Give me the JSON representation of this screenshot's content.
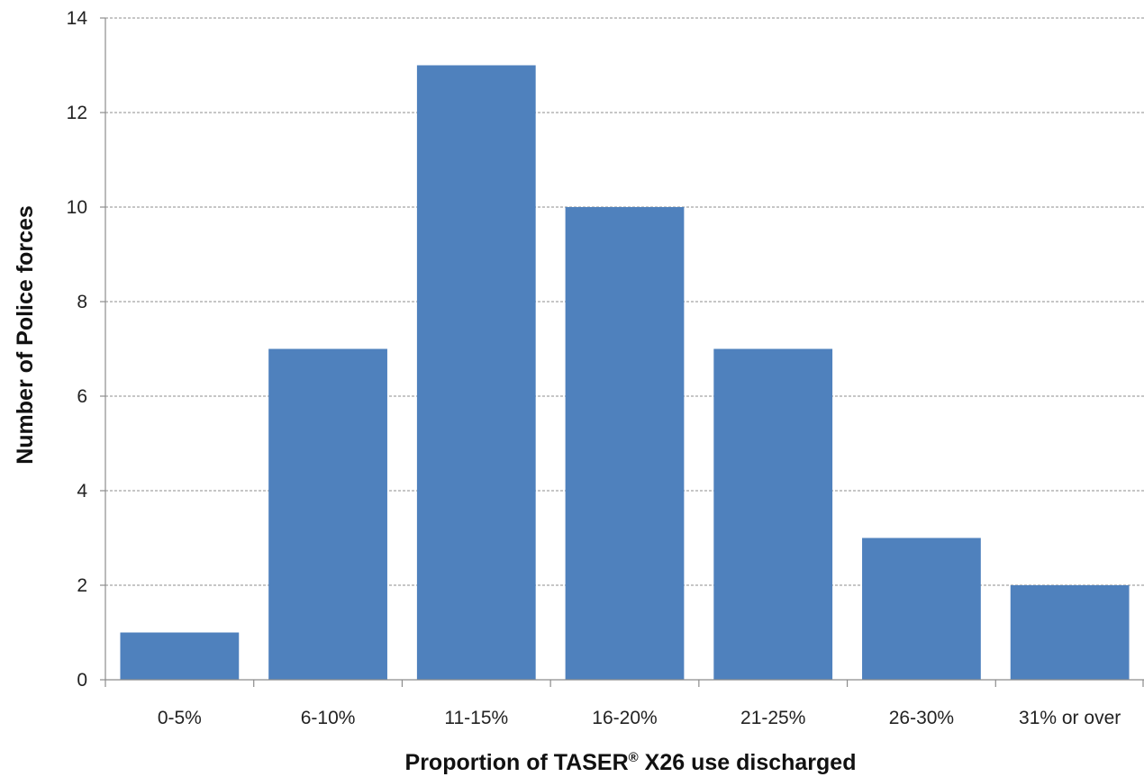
{
  "chart_data": {
    "type": "bar",
    "categories": [
      "0-5%",
      "6-10%",
      "11-15%",
      "16-20%",
      "21-25%",
      "26-30%",
      "31% or over"
    ],
    "values": [
      1,
      7,
      13,
      10,
      7,
      3,
      2
    ],
    "xlabel": "Proportion of TASER",
    "xlabel_mark": "®",
    "xlabel_suffix": " X26 use discharged",
    "ylabel": "Number of Police forces",
    "ylim": [
      0,
      14
    ],
    "yticks": [
      0,
      2,
      4,
      6,
      8,
      10,
      12,
      14
    ],
    "grid": true,
    "legend": "none",
    "bar_color": "#4f81bd"
  }
}
